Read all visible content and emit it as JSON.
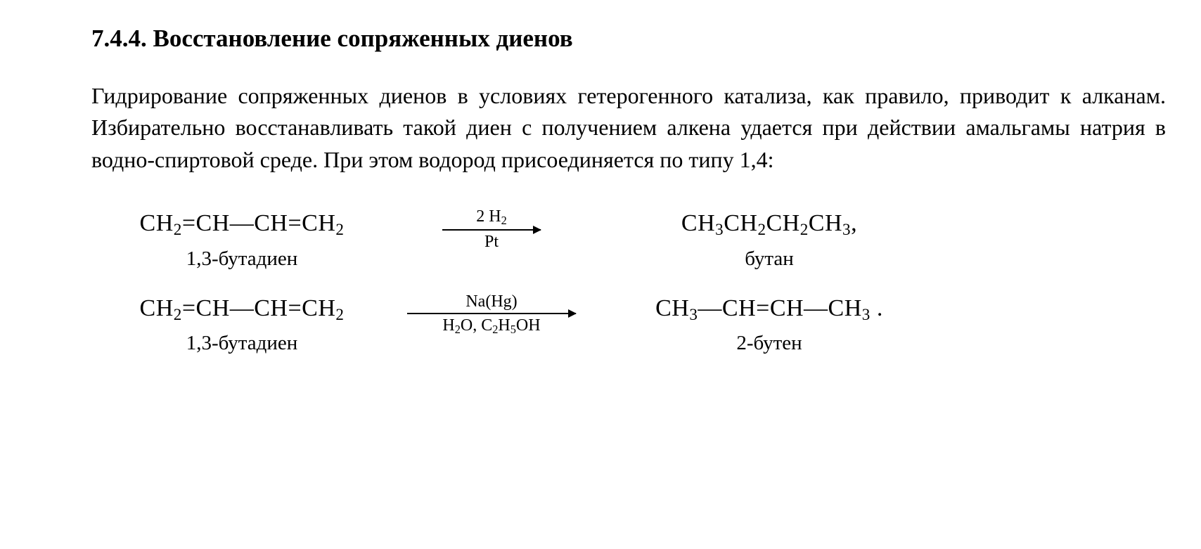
{
  "text_color": "#000000",
  "background_color": "#ffffff",
  "font_family": "Times New Roman",
  "heading": "7.4.4. Восстановление сопряженных диенов",
  "paragraph": "Гидрирование сопряженных диенов в условиях гетерогенного катализа, как правило, приводит к алканам. Избирательно восстанавливать такой диен с получением алкена удается при действии амальгамы натрия в водно-спиртовой среде. При этом водород присоединяется по типу 1,4:",
  "eq1": {
    "reactant_html": "CH<span class=\"sub\">2</span>=CH—CH=CH<span class=\"sub\">2</span>",
    "reactant_caption": "1,3-бутадиен",
    "arrow_top_html": "2 H<span class=\"sub\">2</span>",
    "arrow_bottom_html": "Pt",
    "arrow_width_class": "w-short",
    "product_html": "CH<span class=\"sub\">3</span>CH<span class=\"sub\">2</span>CH<span class=\"sub\">2</span>CH<span class=\"sub\">3</span>,",
    "product_caption": "бутан"
  },
  "eq2": {
    "reactant_html": "CH<span class=\"sub\">2</span>=CH—CH=CH<span class=\"sub\">2</span>",
    "reactant_caption": "1,3-бутадиен",
    "arrow_top_html": "Na(Hg)",
    "arrow_bottom_html": "H<span class=\"sub\">2</span>O, C<span class=\"sub\">2</span>H<span class=\"sub\">5</span>OH",
    "arrow_width_class": "w-long",
    "product_html": "CH<span class=\"sub\">3</span>—CH=CH—CH<span class=\"sub\">3</span> .",
    "product_caption": "2-бутен"
  }
}
